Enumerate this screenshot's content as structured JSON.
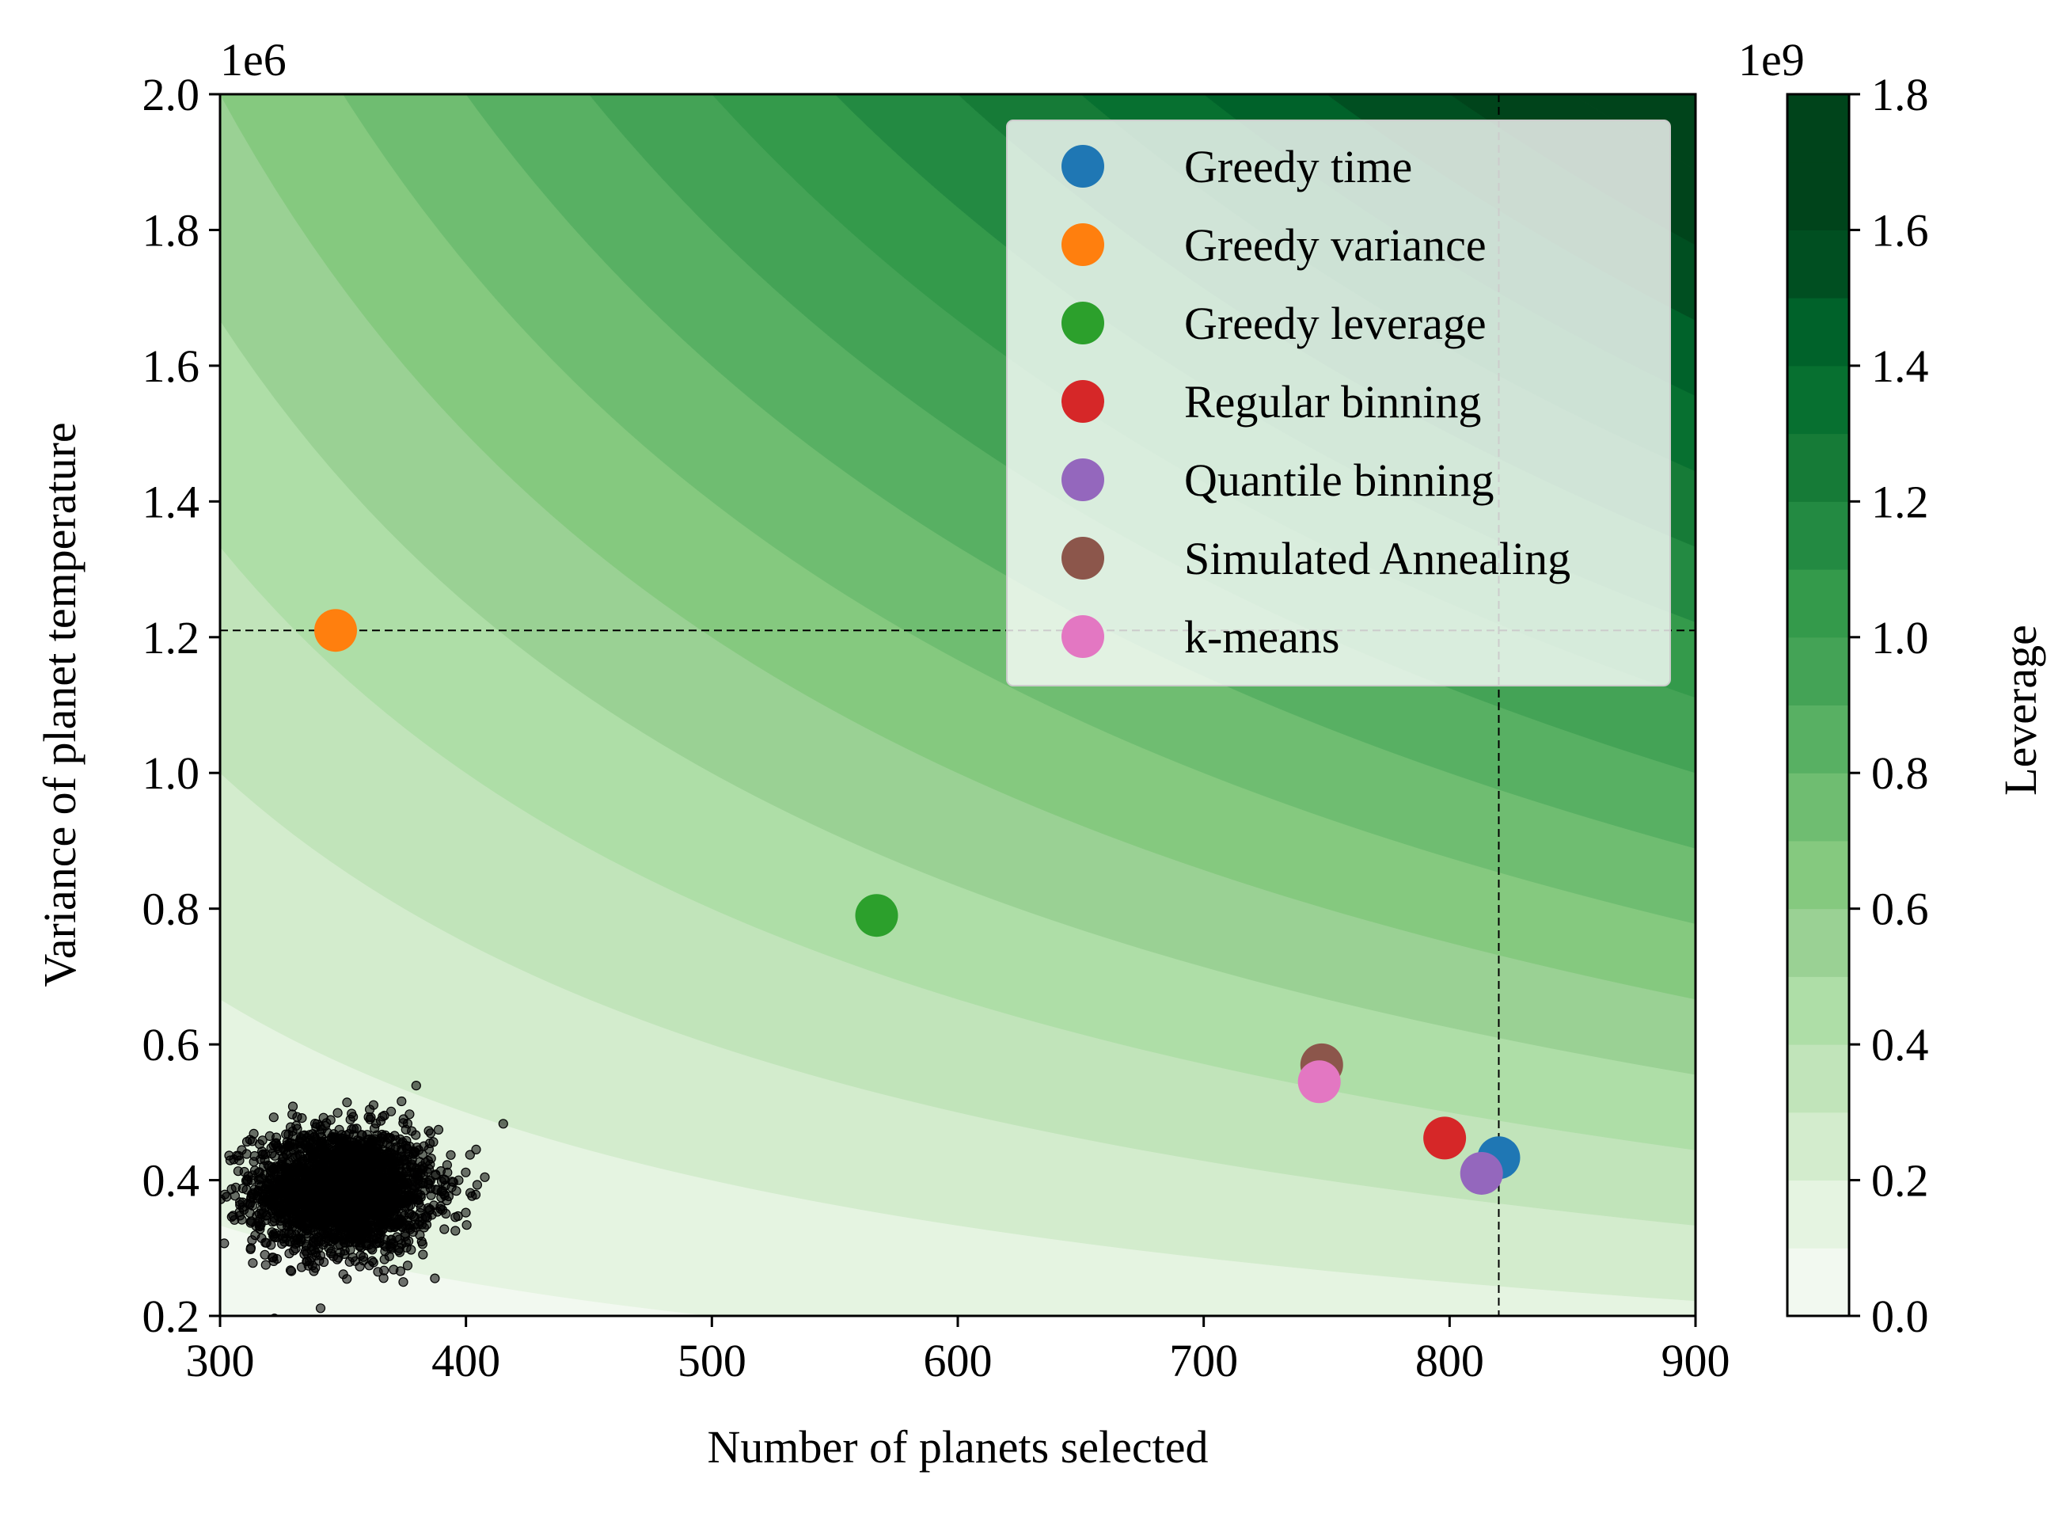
{
  "chart_data": {
    "type": "scatter",
    "xlabel": "Number of planets selected",
    "ylabel": "Variance of planet temperature",
    "y_offset_label": "1e6",
    "xlim": [
      300,
      900
    ],
    "ylim": [
      0.2,
      2.0
    ],
    "x_ticks": [
      "300",
      "400",
      "500",
      "600",
      "700",
      "800",
      "900"
    ],
    "x_tick_values": [
      300,
      400,
      500,
      600,
      700,
      800,
      900
    ],
    "y_ticks": [
      "0.2",
      "0.4",
      "0.6",
      "0.8",
      "1.0",
      "1.2",
      "1.4",
      "1.6",
      "1.8",
      "2.0"
    ],
    "y_tick_values": [
      0.2,
      0.4,
      0.6,
      0.8,
      1.0,
      1.2,
      1.4,
      1.6,
      1.8,
      2.0
    ],
    "background": {
      "type": "filled-contour",
      "quantity": "Leverage (N × variance)",
      "levels": [
        0,
        0.1,
        0.2,
        0.3,
        0.4,
        0.5,
        0.6,
        0.7,
        0.8,
        0.9,
        1.0,
        1.1,
        1.2,
        1.3,
        1.4,
        1.5,
        1.6,
        1.7,
        1.8
      ],
      "colors": [
        "#f2f9f0",
        "#e5f4e1",
        "#d3eccd",
        "#c1e4ba",
        "#aedea7",
        "#9ad194",
        "#85c97f",
        "#6fbd71",
        "#58b063",
        "#44a356",
        "#349a4b",
        "#238a42",
        "#167b37",
        "#077030",
        "#00622a",
        "#004f21",
        "#00441b",
        "#00441b"
      ]
    },
    "reference_lines": {
      "x": 820,
      "y": 1.21,
      "style": "dashed"
    },
    "series": [
      {
        "name": "Greedy time",
        "color": "#1f77b4",
        "points": [
          [
            820,
            0.433
          ]
        ]
      },
      {
        "name": "Greedy variance",
        "color": "#ff7f0e",
        "points": [
          [
            347,
            1.21
          ]
        ]
      },
      {
        "name": "Greedy leverage",
        "color": "#2ca02c",
        "points": [
          [
            567,
            0.79
          ]
        ]
      },
      {
        "name": "Regular binning",
        "color": "#d62728",
        "points": [
          [
            798,
            0.462
          ]
        ]
      },
      {
        "name": "Quantile binning",
        "color": "#9467bd",
        "points": [
          [
            813,
            0.41
          ]
        ]
      },
      {
        "name": "Simulated Annealing",
        "color": "#8c564b",
        "points": [
          [
            748,
            0.57
          ]
        ]
      },
      {
        "name": "k-means",
        "color": "#e377c2",
        "points": [
          [
            747,
            0.545
          ]
        ]
      }
    ],
    "random_cloud": {
      "color": "#000000",
      "center": [
        350,
        0.385
      ],
      "spread_x": 18,
      "spread_y": 0.045,
      "count": 2500
    },
    "legend": {
      "placement": "top-right"
    },
    "colorbar": {
      "label": "Leverage",
      "offset_label": "1e9",
      "ticks": [
        "0.0",
        "0.2",
        "0.4",
        "0.6",
        "0.8",
        "1.0",
        "1.2",
        "1.4",
        "1.6",
        "1.8"
      ],
      "tick_values": [
        0.0,
        0.2,
        0.4,
        0.6,
        0.8,
        1.0,
        1.2,
        1.4,
        1.6,
        1.8
      ],
      "range": [
        0.0,
        1.8
      ]
    }
  }
}
